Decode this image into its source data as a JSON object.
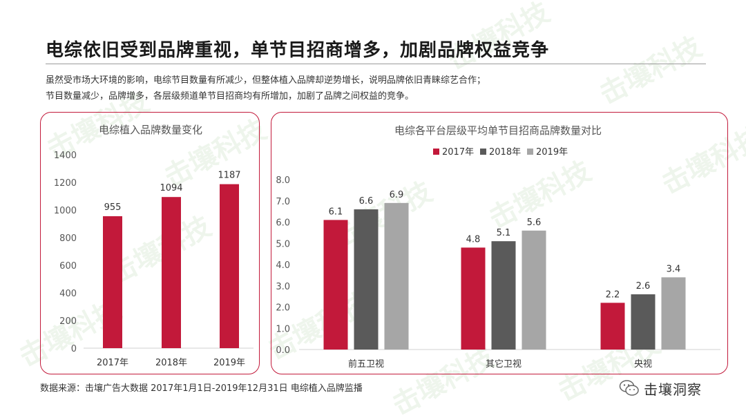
{
  "page": {
    "title": "电综依旧受到品牌重视，单节目招商增多，加剧品牌权益竞争",
    "desc_line1": "虽然受市场大环境的影响，电综节目数量有所减少，但整体植入品牌却逆势增长，说明品牌依旧青睐综艺合作；",
    "desc_line2": "节目数量减少，品牌增多，各层级频道单节目招商均有所增加，加剧了品牌之间权益的竞争。",
    "source": "数据来源：击壤广告大数据 2017年1月1日-2019年12月31日 电综植入品牌监播",
    "wechat_name": "击壤洞察",
    "watermark_text": "击壤科技",
    "brand_color": "#c2193a"
  },
  "chart_data": [
    {
      "type": "bar",
      "title": "电综植入品牌数量变化",
      "categories": [
        "2017年",
        "2018年",
        "2019年"
      ],
      "values": [
        955,
        1094,
        1187
      ],
      "ylim": [
        0,
        1400
      ],
      "yticks": [
        0,
        200,
        400,
        600,
        800,
        1000,
        1200,
        1400
      ],
      "grid": false,
      "color": "#c2193a"
    },
    {
      "type": "bar",
      "title": "电综各平台层级平均单节目招商品牌数量对比",
      "categories": [
        "前五卫视",
        "其它卫视",
        "央视"
      ],
      "series": [
        {
          "name": "2017年",
          "values": [
            6.1,
            4.8,
            2.2
          ],
          "color": "#c2193a"
        },
        {
          "name": "2018年",
          "values": [
            6.6,
            5.1,
            2.6
          ],
          "color": "#5a5a5a"
        },
        {
          "name": "2019年",
          "values": [
            6.9,
            5.6,
            3.4
          ],
          "color": "#a6a6a6"
        }
      ],
      "ylim": [
        0,
        8
      ],
      "yticks": [
        "0.0",
        "1.0",
        "2.0",
        "3.0",
        "4.0",
        "5.0",
        "6.0",
        "7.0",
        "8.0"
      ],
      "legend": "top-center",
      "grid": false
    }
  ]
}
